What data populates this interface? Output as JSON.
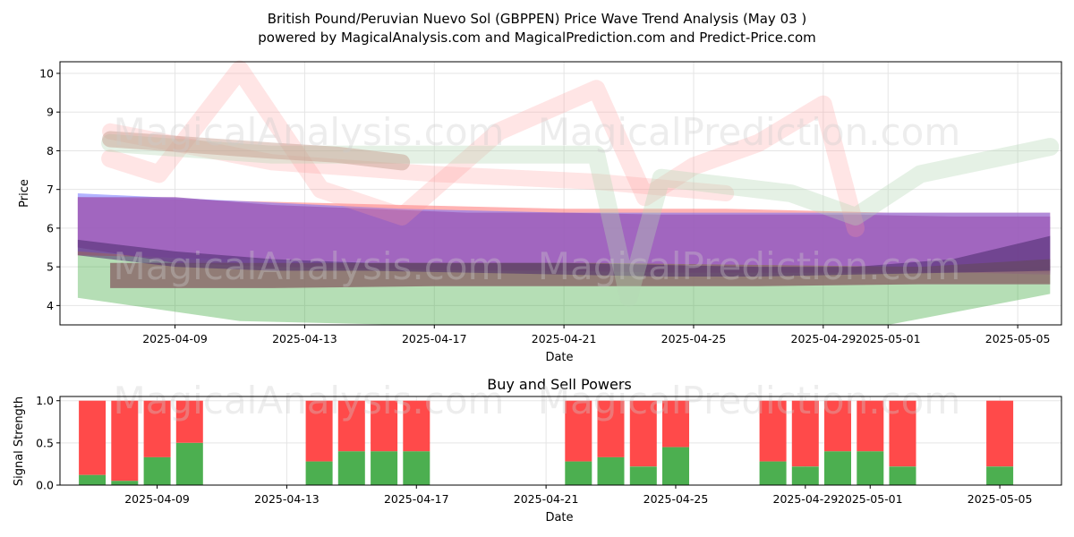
{
  "title_line1": "British Pound/Peruvian Nuevo Sol (GBPPEN) Price Wave Trend Analysis (May 03 )",
  "title_line2": "powered by MagicalAnalysis.com and MagicalPrediction.com and Predict-Price.com",
  "watermarks": [
    "MagicalAnalysis.com",
    "MagicalPrediction.com"
  ],
  "chart_data": [
    {
      "type": "area",
      "xlabel": "Date",
      "ylabel": "Price",
      "ylim": [
        3.5,
        10.3
      ],
      "x_range": [
        "2025-04-06",
        "2025-05-06"
      ],
      "yticks": [
        4,
        5,
        6,
        7,
        8,
        9,
        10
      ],
      "xticks": [
        "2025-04-09",
        "2025-04-13",
        "2025-04-17",
        "2025-04-21",
        "2025-04-25",
        "2025-04-29",
        "2025-05-01",
        "2025-05-05"
      ],
      "grid": true,
      "bands": [
        {
          "color": "#2ca02c",
          "opacity": 0.35,
          "x": [
            "2025-04-06",
            "2025-04-11",
            "2025-04-16",
            "2025-04-21",
            "2025-04-26",
            "2025-05-01",
            "2025-05-06"
          ],
          "upper": [
            5.4,
            5.1,
            5.0,
            5.0,
            4.9,
            4.9,
            5.0
          ],
          "lower": [
            4.2,
            3.6,
            3.5,
            3.5,
            3.5,
            3.5,
            4.3
          ]
        },
        {
          "color": "#ff6666",
          "opacity": 0.5,
          "x": [
            "2025-04-06",
            "2025-04-11",
            "2025-04-16",
            "2025-04-21",
            "2025-04-26",
            "2025-05-01",
            "2025-05-06"
          ],
          "upper": [
            6.8,
            6.7,
            6.6,
            6.5,
            6.5,
            6.4,
            6.4
          ],
          "lower": [
            5.3,
            5.2,
            5.1,
            5.0,
            4.9,
            4.9,
            4.8
          ]
        },
        {
          "color": "#6666ff",
          "opacity": 0.5,
          "x": [
            "2025-04-06",
            "2025-04-11",
            "2025-04-16",
            "2025-04-21",
            "2025-04-26",
            "2025-05-01",
            "2025-05-06"
          ],
          "upper": [
            6.9,
            6.7,
            6.5,
            6.4,
            6.4,
            6.4,
            6.4
          ],
          "lower": [
            5.4,
            5.1,
            5.0,
            5.0,
            4.9,
            4.9,
            4.8
          ]
        },
        {
          "color": "#9b59b6",
          "opacity": 0.75,
          "x": [
            "2025-04-06",
            "2025-04-09",
            "2025-04-12",
            "2025-04-15",
            "2025-04-18",
            "2025-04-21",
            "2025-04-24",
            "2025-04-27",
            "2025-04-30",
            "2025-05-03",
            "2025-05-06"
          ],
          "upper": [
            6.8,
            6.8,
            6.6,
            6.5,
            6.4,
            6.4,
            6.35,
            6.35,
            6.35,
            6.3,
            6.3
          ],
          "lower": [
            5.5,
            5.1,
            5.0,
            4.95,
            4.9,
            4.9,
            4.85,
            4.85,
            4.85,
            4.85,
            4.85
          ]
        },
        {
          "color": "#8b6b6b",
          "opacity": 0.85,
          "x": [
            "2025-04-07",
            "2025-04-12",
            "2025-04-17",
            "2025-04-22",
            "2025-04-27",
            "2025-05-02",
            "2025-05-06"
          ],
          "upper": [
            5.1,
            5.1,
            5.1,
            5.1,
            5.05,
            5.0,
            5.2
          ],
          "lower": [
            4.45,
            4.45,
            4.5,
            4.5,
            4.5,
            4.55,
            4.55
          ]
        },
        {
          "color": "#4b2a6b",
          "opacity": 0.55,
          "x": [
            "2025-04-06",
            "2025-04-09",
            "2025-04-12",
            "2025-04-15",
            "2025-04-18",
            "2025-04-21",
            "2025-04-24",
            "2025-04-27",
            "2025-04-30",
            "2025-05-03",
            "2025-05-06"
          ],
          "upper": [
            5.7,
            5.4,
            5.2,
            5.1,
            5.1,
            5.1,
            5.05,
            5.0,
            5.0,
            5.2,
            5.8
          ],
          "lower": [
            5.3,
            5.0,
            4.9,
            4.9,
            4.85,
            4.8,
            4.75,
            4.75,
            4.8,
            4.85,
            4.9
          ]
        }
      ],
      "strokes": [
        {
          "color": "#ff9999",
          "opacity": 0.25,
          "width": 20,
          "x": [
            "2025-04-07",
            "2025-04-08.5",
            "2025-04-11",
            "2025-04-13.5",
            "2025-04-16",
            "2025-04-19",
            "2025-04-22",
            "2025-04-23.5",
            "2025-04-25",
            "2025-04-27",
            "2025-04-29",
            "2025-04-30"
          ],
          "y": [
            7.8,
            7.4,
            10.1,
            7.0,
            6.3,
            8.5,
            9.6,
            6.8,
            7.6,
            8.2,
            9.2,
            6.0
          ]
        },
        {
          "color": "#ff9999",
          "opacity": 0.25,
          "width": 18,
          "x": [
            "2025-04-07",
            "2025-04-12",
            "2025-04-17",
            "2025-04-22",
            "2025-04-26"
          ],
          "y": [
            8.5,
            7.7,
            7.4,
            7.2,
            6.9
          ]
        },
        {
          "color": "#b5d6b5",
          "opacity": 0.35,
          "width": 20,
          "x": [
            "2025-04-07",
            "2025-04-12",
            "2025-04-17",
            "2025-04-22",
            "2025-04-23",
            "2025-04-24",
            "2025-04-28",
            "2025-04-30",
            "2025-05-02",
            "2025-05-06"
          ],
          "y": [
            8.2,
            7.9,
            7.9,
            7.9,
            4.2,
            7.3,
            6.9,
            6.3,
            7.4,
            8.1
          ]
        },
        {
          "color": "#c49a8a",
          "opacity": 0.45,
          "width": 18,
          "x": [
            "2025-04-07",
            "2025-04-12",
            "2025-04-14",
            "2025-04-16"
          ],
          "y": [
            8.3,
            8.0,
            7.9,
            7.7
          ]
        }
      ]
    },
    {
      "type": "bar",
      "title": "Buy and Sell Powers",
      "xlabel": "Date",
      "ylabel": "Signal Strength",
      "ylim": [
        0,
        1.05
      ],
      "yticks": [
        "0.0",
        "0.5",
        "1.0"
      ],
      "xticks": [
        "2025-04-09",
        "2025-04-13",
        "2025-04-17",
        "2025-04-21",
        "2025-04-25",
        "2025-04-29",
        "2025-05-01",
        "2025-05-05"
      ],
      "grid": true,
      "buy_color": "#4caf50",
      "sell_color": "#ff4a4a",
      "dates": [
        "2025-04-07",
        "2025-04-08",
        "2025-04-09",
        "2025-04-10",
        "2025-04-14",
        "2025-04-15",
        "2025-04-16",
        "2025-04-17",
        "2025-04-22",
        "2025-04-23",
        "2025-04-24",
        "2025-04-25",
        "2025-04-28",
        "2025-04-29",
        "2025-04-30",
        "2025-05-01",
        "2025-05-02",
        "2025-05-05"
      ],
      "buy": [
        0.12,
        0.05,
        0.33,
        0.5,
        0.28,
        0.4,
        0.4,
        0.4,
        0.28,
        0.33,
        0.22,
        0.45,
        0.28,
        0.22,
        0.4,
        0.4,
        0.22,
        0.22
      ]
    }
  ]
}
